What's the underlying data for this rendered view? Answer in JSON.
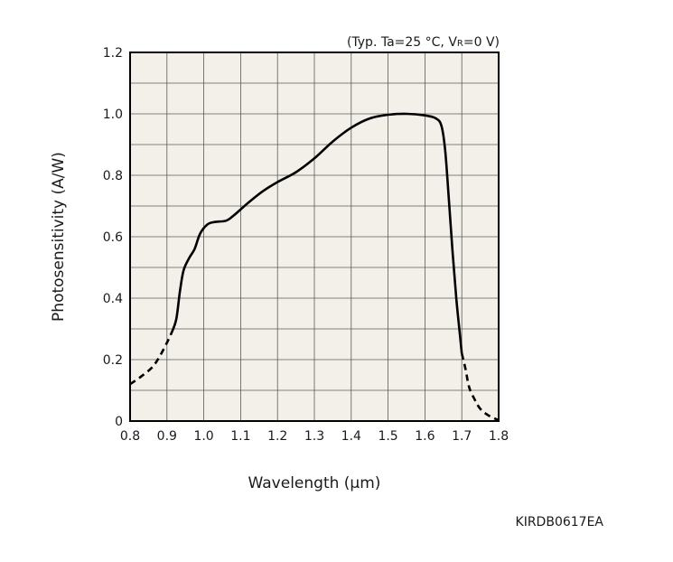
{
  "chart_data": {
    "type": "line",
    "conditions_prefix": "(Typ. Ta=25 °C, V",
    "conditions_sub": "R",
    "conditions_suffix": "=0 V)",
    "xlabel": "Wavelength (μm)",
    "ylabel": "Photosensitivity (A/W)",
    "xlim": [
      0.8,
      1.8
    ],
    "ylim": [
      0,
      1.2
    ],
    "x_ticks": [
      "0.8",
      "0.9",
      "1.0",
      "1.1",
      "1.2",
      "1.3",
      "1.4",
      "1.5",
      "1.6",
      "1.7",
      "1.8"
    ],
    "y_ticks": [
      "0",
      "0.2",
      "0.4",
      "0.6",
      "0.8",
      "1.0",
      "1.2"
    ],
    "grid": true,
    "series": [
      {
        "style": "dashed",
        "points": [
          [
            0.8,
            0.12
          ],
          [
            0.83,
            0.145
          ],
          [
            0.86,
            0.175
          ],
          [
            0.88,
            0.21
          ],
          [
            0.9,
            0.255
          ],
          [
            0.91,
            0.28
          ]
        ]
      },
      {
        "style": "solid",
        "points": [
          [
            0.91,
            0.28
          ],
          [
            0.925,
            0.33
          ],
          [
            0.935,
            0.42
          ],
          [
            0.945,
            0.49
          ],
          [
            0.96,
            0.53
          ],
          [
            0.975,
            0.56
          ],
          [
            0.99,
            0.61
          ],
          [
            1.01,
            0.64
          ],
          [
            1.03,
            0.648
          ],
          [
            1.06,
            0.652
          ],
          [
            1.08,
            0.668
          ],
          [
            1.12,
            0.71
          ],
          [
            1.16,
            0.748
          ],
          [
            1.2,
            0.778
          ],
          [
            1.25,
            0.81
          ],
          [
            1.3,
            0.855
          ],
          [
            1.35,
            0.91
          ],
          [
            1.4,
            0.955
          ],
          [
            1.45,
            0.985
          ],
          [
            1.5,
            0.997
          ],
          [
            1.55,
            1.0
          ],
          [
            1.6,
            0.995
          ],
          [
            1.63,
            0.985
          ],
          [
            1.645,
            0.96
          ],
          [
            1.655,
            0.88
          ],
          [
            1.665,
            0.72
          ],
          [
            1.675,
            0.55
          ],
          [
            1.685,
            0.4
          ],
          [
            1.695,
            0.28
          ],
          [
            1.7,
            0.22
          ]
        ]
      },
      {
        "style": "dashed",
        "points": [
          [
            1.7,
            0.22
          ],
          [
            1.71,
            0.17
          ],
          [
            1.72,
            0.11
          ],
          [
            1.735,
            0.07
          ],
          [
            1.75,
            0.04
          ],
          [
            1.77,
            0.02
          ],
          [
            1.79,
            0.008
          ],
          [
            1.8,
            0.003
          ]
        ]
      }
    ]
  },
  "figure_code": "KIRDB0617EA",
  "colors": {
    "plot_bg": "#f2f0e8",
    "grid": "#5a5a5a",
    "curve": "#000000"
  }
}
